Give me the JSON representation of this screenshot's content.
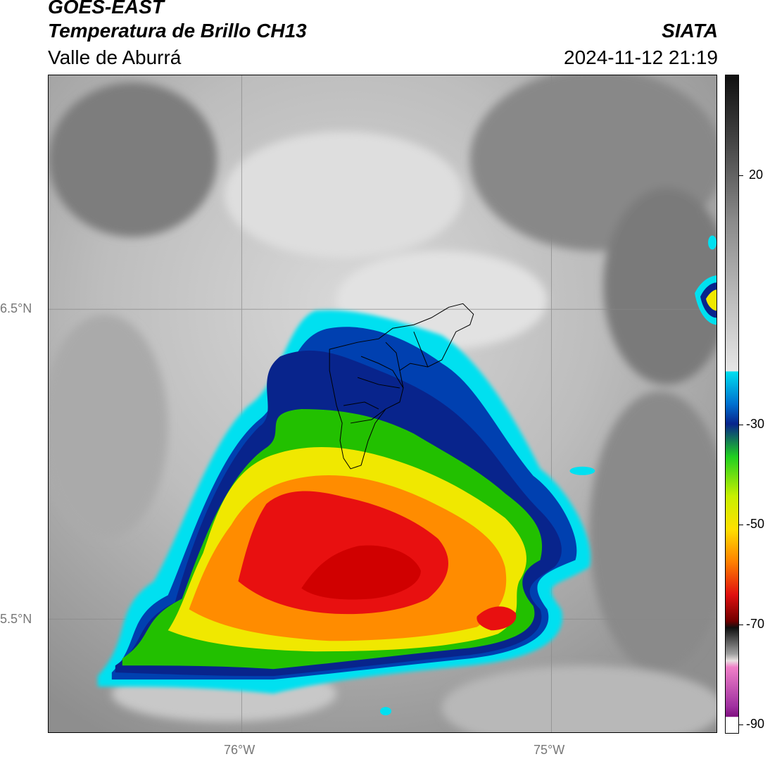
{
  "header": {
    "satellite": "GOES-EAST",
    "product": "Temperatura de Brillo CH13",
    "region": "Valle de Aburrá",
    "agency": "SIATA",
    "datetime": "2024-11-12 21:19"
  },
  "map": {
    "lat_labels": [
      "6.5°N",
      "5.5°N"
    ],
    "lon_labels": [
      "76°W",
      "75°W"
    ]
  },
  "colorbar": {
    "ticks": [
      "20",
      "-30",
      "-50",
      "-70",
      "-90"
    ],
    "colors": {
      "cold_cyan": "#00e0f0",
      "dark_blue": "#08248c",
      "green": "#22c000",
      "yellow": "#f0e800",
      "orange": "#ff8c00",
      "red": "#e81010",
      "magenta": "#d040c0"
    }
  }
}
